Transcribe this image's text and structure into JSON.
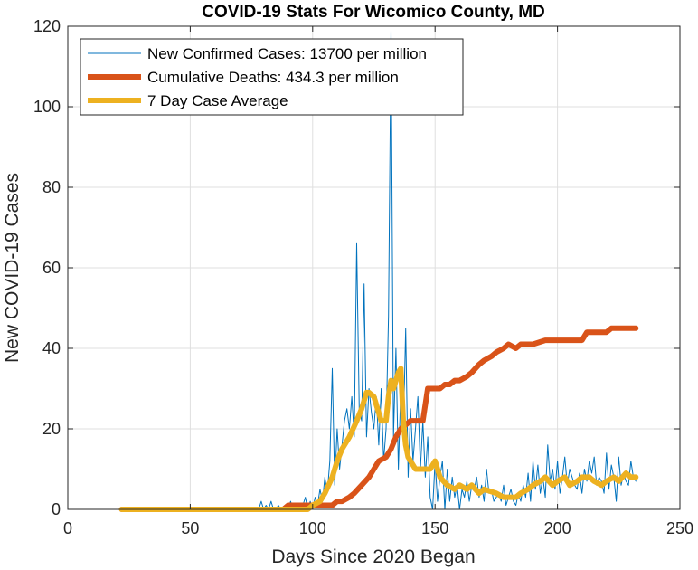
{
  "chart_data": {
    "type": "line",
    "title": "COVID-19 Stats For Wicomico County, MD",
    "xlabel": "Days Since 2020 Began",
    "ylabel": "New COVID-19 Cases",
    "xlim": [
      0,
      250
    ],
    "ylim": [
      0,
      120
    ],
    "xticks": [
      0,
      50,
      100,
      150,
      200,
      250
    ],
    "yticks": [
      0,
      20,
      40,
      60,
      80,
      100,
      120
    ],
    "grid": true,
    "legend_position": "top-left",
    "series": [
      {
        "name": "New Confirmed Cases: 13700 per million",
        "color": "#0072BD",
        "style": "thin",
        "x": [
          22,
          75,
          78,
          79,
          80,
          81,
          82,
          83,
          84,
          85,
          86,
          87,
          88,
          89,
          90,
          91,
          92,
          93,
          94,
          95,
          96,
          97,
          98,
          99,
          100,
          101,
          102,
          103,
          104,
          105,
          106,
          107,
          108,
          109,
          110,
          111,
          112,
          113,
          114,
          115,
          116,
          117,
          118,
          119,
          120,
          121,
          122,
          123,
          124,
          125,
          126,
          127,
          128,
          129,
          130,
          131,
          132,
          133,
          134,
          135,
          136,
          137,
          138,
          139,
          140,
          141,
          142,
          143,
          144,
          145,
          146,
          147,
          148,
          149,
          150,
          151,
          152,
          153,
          154,
          155,
          156,
          157,
          158,
          159,
          160,
          161,
          162,
          163,
          164,
          165,
          166,
          167,
          168,
          169,
          170,
          171,
          172,
          173,
          174,
          175,
          176,
          177,
          178,
          179,
          180,
          181,
          182,
          183,
          184,
          185,
          186,
          187,
          188,
          189,
          190,
          191,
          192,
          193,
          194,
          195,
          196,
          197,
          198,
          199,
          200,
          201,
          202,
          203,
          204,
          205,
          206,
          207,
          208,
          209,
          210,
          211,
          212,
          213,
          214,
          215,
          216,
          217,
          218,
          219,
          220,
          221,
          222,
          223,
          224,
          225,
          226,
          227,
          228,
          229,
          230,
          231,
          232
        ],
        "y": [
          0,
          0,
          0,
          2,
          0,
          1,
          0,
          2,
          0,
          0,
          1,
          0,
          0,
          1,
          0,
          2,
          0,
          1,
          0,
          0,
          1,
          3,
          0,
          2,
          0,
          3,
          1,
          5,
          2,
          8,
          4,
          12,
          35,
          6,
          20,
          10,
          16,
          22,
          25,
          20,
          28,
          18,
          66,
          25,
          22,
          56,
          18,
          30,
          24,
          20,
          28,
          16,
          30,
          12,
          20,
          48,
          119,
          18,
          40,
          10,
          30,
          18,
          45,
          8,
          25,
          12,
          20,
          28,
          10,
          22,
          8,
          18,
          3,
          0,
          12,
          2,
          8,
          12,
          0,
          10,
          2,
          8,
          3,
          6,
          0,
          5,
          3,
          7,
          2,
          6,
          5,
          8,
          3,
          6,
          2,
          10,
          4,
          5,
          2,
          3,
          4,
          2,
          6,
          1,
          3,
          5,
          2,
          1,
          4,
          2,
          6,
          3,
          9,
          2,
          12,
          5,
          11,
          4,
          8,
          3,
          16,
          7,
          10,
          5,
          12,
          4,
          8,
          13,
          6,
          10,
          8,
          6,
          5,
          9,
          4,
          10,
          7,
          12,
          9,
          13,
          6,
          8,
          7,
          4,
          14,
          5,
          11,
          8,
          2,
          13,
          6,
          9,
          7,
          6,
          12,
          8,
          7
        ]
      },
      {
        "name": "Cumulative Deaths: 434.3 per million",
        "color": "#D95319",
        "style": "thick",
        "x": [
          22,
          80,
          85,
          88,
          90,
          100,
          105,
          108,
          110,
          112,
          115,
          117,
          120,
          123,
          125,
          127,
          130,
          132,
          134,
          136,
          138,
          140,
          142,
          145,
          147,
          150,
          152,
          154,
          156,
          158,
          160,
          163,
          165,
          168,
          170,
          173,
          175,
          178,
          180,
          183,
          185,
          188,
          190,
          195,
          200,
          205,
          210,
          212,
          215,
          220,
          222,
          225,
          230,
          232
        ],
        "y": [
          0,
          0,
          0,
          0,
          1,
          1,
          1,
          1,
          2,
          2,
          3,
          4,
          6,
          8,
          10,
          12,
          13,
          15,
          18,
          20,
          21,
          22,
          22,
          22,
          30,
          30,
          30,
          31,
          31,
          32,
          32,
          33,
          34,
          36,
          37,
          38,
          39,
          40,
          41,
          40,
          41,
          41,
          41,
          42,
          42,
          42,
          42,
          44,
          44,
          44,
          45,
          45,
          45,
          45
        ]
      },
      {
        "name": "7 Day Case Average",
        "color": "#EDB120",
        "style": "thick",
        "x": [
          22,
          60,
          80,
          85,
          90,
          95,
          98,
          100,
          103,
          105,
          108,
          110,
          112,
          115,
          118,
          120,
          122,
          123,
          125,
          127,
          128,
          130,
          131,
          132,
          133,
          134,
          135,
          136,
          137,
          138,
          139,
          140,
          142,
          144,
          146,
          148,
          150,
          152,
          155,
          158,
          160,
          163,
          165,
          168,
          170,
          175,
          178,
          180,
          183,
          185,
          188,
          190,
          193,
          195,
          198,
          200,
          203,
          205,
          208,
          210,
          213,
          215,
          218,
          220,
          223,
          225,
          228,
          230,
          232
        ],
        "y": [
          0,
          0,
          0,
          0,
          0,
          0,
          0,
          1,
          2,
          4,
          8,
          12,
          15,
          18,
          22,
          25,
          29,
          29,
          28,
          24,
          22,
          22,
          28,
          32,
          30,
          32,
          34,
          35,
          22,
          16,
          13,
          12,
          10,
          10,
          10,
          10,
          12,
          8,
          6,
          5,
          6,
          5,
          6,
          4,
          5,
          4,
          3,
          3,
          3,
          4,
          5,
          6,
          7,
          8,
          6,
          7,
          8,
          6,
          7,
          8,
          8,
          7,
          6,
          7,
          8,
          7,
          9,
          8,
          8
        ]
      }
    ]
  }
}
